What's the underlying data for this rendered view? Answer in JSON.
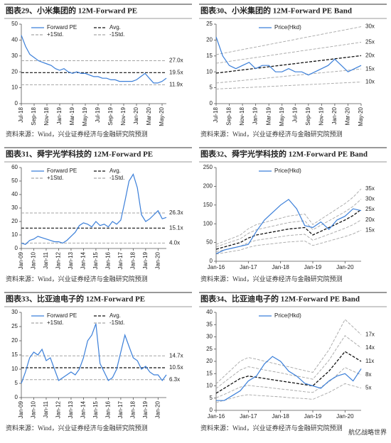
{
  "watermark": "航亿战略世界",
  "chart_data": [
    {
      "type": "line",
      "title": "图表29、小米集团的 12M-Forward PE",
      "source": "资料来源：Wind，兴业证券经济与金融研究院预测",
      "legend": "top",
      "rotate_xlabels": true,
      "categories": [
        "Jul-18",
        null,
        null,
        "Sep-18",
        null,
        null,
        "Nov-18",
        null,
        null,
        "Jan-19",
        null,
        null,
        "Mar-19",
        null,
        null,
        "May-19",
        null,
        null,
        "Jul-19",
        null,
        null,
        "Sep-19",
        null,
        null,
        "Nov-19",
        null,
        null,
        "Jan-20",
        null,
        null,
        "Mar-20",
        null,
        null,
        "May-20",
        null
      ],
      "series": [
        {
          "name": "Forward PE",
          "color": "#3b7fd9",
          "values": [
            43,
            36,
            31,
            29,
            27,
            26,
            25,
            24,
            22,
            21,
            22,
            20,
            19,
            20,
            19,
            19,
            18,
            17,
            17,
            16,
            16,
            15,
            15,
            14,
            14,
            14,
            14,
            15,
            17,
            19,
            16,
            13,
            13,
            14,
            16
          ]
        }
      ],
      "lines": [
        {
          "name": "Avg.",
          "value": 19.5,
          "label": "19.5x",
          "color": "#111111",
          "dash": "dashed"
        },
        {
          "name": "+1Std.",
          "value": 27.0,
          "label": "27.0x",
          "color": "#a6a6a6",
          "dash": "dashed"
        },
        {
          "name": "-1Std.",
          "value": 11.9,
          "label": "11.9x",
          "color": "#a6a6a6",
          "dash": "dashed"
        }
      ],
      "ylim": [
        0,
        50
      ],
      "yticks": [
        0,
        10,
        20,
        30,
        40,
        50
      ]
    },
    {
      "type": "line",
      "title": "图表30、小米集团的 12M-Forward PE Band",
      "source": "资料来源：Wind，兴业证券经济与金融研究院预测",
      "legend": "top",
      "rotate_xlabels": true,
      "categories": [
        "Jul-18",
        null,
        "Sep-18",
        null,
        "Nov-18",
        null,
        "Jan-19",
        null,
        "Mar-19",
        null,
        "May-19",
        null,
        "Jul-19",
        null,
        "Sep-19",
        null,
        "Nov-19",
        null,
        "Jan-20",
        null,
        "Mar-20",
        null,
        "May-20"
      ],
      "series": [
        {
          "name": "Price(Hkd)",
          "color": "#3b7fd9",
          "values": [
            21,
            15,
            12,
            11,
            12,
            13,
            11,
            12,
            12,
            10,
            10,
            11,
            10,
            10,
            9,
            10,
            11,
            12,
            14,
            12,
            10,
            11,
            12
          ]
        }
      ],
      "bands": [
        {
          "label": "30x",
          "color": "#a6a6a6",
          "dash": "dashed",
          "values": [
            15.4,
            15.8,
            16.2,
            16.6,
            17.0,
            17.4,
            17.8,
            18.2,
            18.6,
            19.0,
            19.4,
            19.8,
            20.2,
            20.6,
            21.0,
            21.4,
            21.8,
            22.2,
            22.6,
            23.0,
            23.4,
            23.8,
            24.2
          ]
        },
        {
          "label": "25x",
          "color": "#a6a6a6",
          "dash": "dashed",
          "values": [
            12.7,
            13.0,
            13.3,
            13.6,
            13.9,
            14.2,
            14.5,
            14.8,
            15.1,
            15.4,
            15.7,
            16.0,
            16.3,
            16.6,
            16.9,
            17.2,
            17.5,
            17.8,
            18.1,
            18.4,
            18.7,
            19.0,
            19.3
          ]
        },
        {
          "label": "20x",
          "color": "#111111",
          "dash": "dashed",
          "values": [
            9.6,
            9.85,
            10.1,
            10.35,
            10.6,
            10.85,
            11.1,
            11.35,
            11.6,
            11.85,
            12.1,
            12.35,
            12.6,
            12.85,
            13.1,
            13.35,
            13.6,
            13.85,
            14.1,
            14.35,
            14.6,
            14.85,
            15.1
          ]
        },
        {
          "label": "15x",
          "color": "#a6a6a6",
          "dash": "dashed",
          "values": [
            6.5,
            6.7,
            6.9,
            7.1,
            7.3,
            7.5,
            7.7,
            7.9,
            8.1,
            8.3,
            8.5,
            8.7,
            8.9,
            9.1,
            9.3,
            9.5,
            9.7,
            9.9,
            10.1,
            10.3,
            10.5,
            10.7,
            10.9
          ]
        },
        {
          "label": "10x",
          "color": "#a6a6a6",
          "dash": "dashed",
          "values": [
            4.6,
            4.7,
            4.8,
            4.9,
            5.0,
            5.1,
            5.2,
            5.3,
            5.4,
            5.5,
            5.6,
            5.7,
            5.8,
            5.9,
            6.0,
            6.1,
            6.2,
            6.3,
            6.4,
            6.5,
            6.6,
            6.7,
            6.8
          ]
        }
      ],
      "ylim": [
        0,
        25
      ],
      "yticks": [
        0,
        5,
        10,
        15,
        20,
        25
      ]
    },
    {
      "type": "line",
      "title": "图表31、舜宇光学科技的 12M-Forward PE",
      "source": "资料来源：Wind，兴业证券经济与金融研究院预测",
      "legend": "top",
      "rotate_xlabels": true,
      "categories": [
        "Jan-09",
        null,
        null,
        "Jan-10",
        null,
        null,
        "Jan-11",
        null,
        null,
        "Jan-12",
        null,
        null,
        "Jan-13",
        null,
        null,
        "Jan-14",
        null,
        null,
        "Jan-15",
        null,
        null,
        "Jan-16",
        null,
        null,
        "Jan-17",
        null,
        null,
        "Jan-18",
        null,
        null,
        "Jan-19",
        null,
        null,
        "Jan-20",
        null,
        null
      ],
      "series": [
        {
          "name": "Forward PE",
          "color": "#3b7fd9",
          "values": [
            4,
            3,
            6,
            7,
            9,
            8,
            7,
            6,
            5,
            5,
            4,
            6,
            9,
            12,
            17,
            19,
            18,
            16,
            20,
            17,
            18,
            16,
            20,
            18,
            21,
            35,
            50,
            55,
            45,
            25,
            20,
            22,
            25,
            28,
            22,
            23
          ]
        }
      ],
      "lines": [
        {
          "name": "Avg.",
          "value": 15.1,
          "label": "15.1x",
          "color": "#111111",
          "dash": "dashed"
        },
        {
          "name": "+1Std.",
          "value": 26.3,
          "label": "26.3x",
          "color": "#a6a6a6",
          "dash": "dashed"
        },
        {
          "name": "-1Std.",
          "value": 4.0,
          "label": "4.0x",
          "color": "#a6a6a6",
          "dash": "dashed"
        }
      ],
      "ylim": [
        0,
        60
      ],
      "yticks": [
        0,
        10,
        20,
        30,
        40,
        50,
        60
      ]
    },
    {
      "type": "line",
      "title": "图表32、舜宇光学科技的 12M-Forward PE Band",
      "source": "资料来源：Wind，兴业证券经济与金融研究院预测",
      "legend": "top",
      "rotate_xlabels": false,
      "categories": [
        "Jan-16",
        null,
        null,
        null,
        "Jan-17",
        null,
        null,
        null,
        "Jan-18",
        null,
        null,
        null,
        "Jan-19",
        null,
        null,
        null,
        "Jan-20",
        null,
        null
      ],
      "series": [
        {
          "name": "Price(Hkd)",
          "color": "#3b7fd9",
          "values": [
            20,
            30,
            35,
            40,
            45,
            80,
            110,
            130,
            150,
            165,
            140,
            95,
            90,
            105,
            85,
            110,
            120,
            140,
            135
          ]
        }
      ],
      "bands": [
        {
          "label": "35x",
          "color": "#a6a6a6",
          "dash": "dashed",
          "values": [
            44.8,
            53.2,
            61.6,
            70,
            86.8,
            98,
            103.6,
            109.2,
            114.8,
            120.4,
            123.2,
            126,
            98,
            112,
            126,
            140,
            154,
            170.8,
            193.2
          ]
        },
        {
          "label": "30x",
          "color": "#a6a6a6",
          "dash": "dashed",
          "values": [
            38.4,
            45.6,
            52.8,
            60,
            74.4,
            84,
            88.8,
            93.6,
            98.4,
            103.2,
            105.6,
            108,
            84,
            96,
            108,
            120,
            132,
            146.4,
            165.6
          ]
        },
        {
          "label": "25x",
          "color": "#111111",
          "dash": "dashed",
          "values": [
            32,
            38,
            44,
            50,
            62,
            70,
            74,
            78,
            82,
            86,
            88,
            90,
            70,
            80,
            90,
            100,
            110,
            122,
            138
          ]
        },
        {
          "label": "20x",
          "color": "#a6a6a6",
          "dash": "dashed",
          "values": [
            25.6,
            30.4,
            35.2,
            40,
            49.6,
            56,
            59.2,
            62.4,
            65.6,
            68.8,
            70.4,
            72,
            56,
            64,
            72,
            80,
            88,
            97.6,
            110.4
          ]
        },
        {
          "label": "15x",
          "color": "#a6a6a6",
          "dash": "dashed",
          "values": [
            19.2,
            22.8,
            26.4,
            30,
            37.2,
            42,
            44.4,
            46.8,
            49.2,
            51.6,
            52.8,
            54,
            42,
            48,
            54,
            60,
            66,
            73.2,
            82.8
          ]
        }
      ],
      "ylim": [
        0,
        250
      ],
      "yticks": [
        0,
        50,
        100,
        150,
        200,
        250
      ]
    },
    {
      "type": "line",
      "title": "图表33、比亚迪电子的 12M-Forward PE",
      "source": "资料来源：Wind，兴业证券经济与金融研究院预测",
      "legend": "top",
      "rotate_xlabels": true,
      "categories": [
        "Jan-09",
        null,
        null,
        "Jan-10",
        null,
        null,
        "Jan-11",
        null,
        null,
        "Jan-12",
        null,
        null,
        "Jan-13",
        null,
        null,
        "Jan-14",
        null,
        null,
        "Jan-15",
        null,
        null,
        "Jan-16",
        null,
        null,
        "Jan-17",
        null,
        null,
        "Jan-18",
        null,
        null,
        "Jan-19",
        null,
        null,
        "Jan-20",
        null,
        null
      ],
      "series": [
        {
          "name": "Forward PE",
          "color": "#3b7fd9",
          "values": [
            5,
            9,
            14,
            16,
            15,
            17,
            13,
            14,
            10,
            6,
            7,
            8,
            9,
            8,
            10,
            14,
            20,
            22,
            26,
            12,
            9,
            6,
            7,
            10,
            16,
            22,
            18,
            14,
            13,
            10,
            11,
            9,
            8,
            8,
            6,
            8
          ]
        }
      ],
      "lines": [
        {
          "name": "Avg.",
          "value": 10.5,
          "label": "10.5x",
          "color": "#111111",
          "dash": "dashed"
        },
        {
          "name": "+1Std.",
          "value": 14.7,
          "label": "14.7x",
          "color": "#a6a6a6",
          "dash": "dashed"
        },
        {
          "name": "-1Std.",
          "value": 6.3,
          "label": "6.3x",
          "color": "#a6a6a6",
          "dash": "dashed"
        }
      ],
      "ylim": [
        0,
        30
      ],
      "yticks": [
        0,
        5,
        10,
        15,
        20,
        25,
        30
      ]
    },
    {
      "type": "line",
      "title": "图表34、比亚迪电子的 12M-Forward PE Band",
      "source": "资料来源：Wind，兴业证券经济与金融研究院预测",
      "legend": "top",
      "rotate_xlabels": false,
      "categories": [
        "Jan-16",
        null,
        null,
        null,
        "Jan-17",
        null,
        null,
        null,
        "Jan-18",
        null,
        null,
        null,
        "Jan-19",
        null,
        null,
        null,
        "Jan-20",
        null,
        null
      ],
      "series": [
        {
          "name": "Price(Hkd)",
          "color": "#3b7fd9",
          "values": [
            4,
            4,
            6,
            8,
            12,
            14,
            19,
            22,
            20,
            16,
            14,
            11,
            10,
            9,
            12,
            14,
            15,
            12,
            17
          ]
        }
      ],
      "bands": [
        {
          "label": "17x",
          "color": "#a6a6a6",
          "dash": "dashed",
          "values": [
            10.8,
            13.9,
            17,
            20.1,
            21.6,
            20.9,
            20.1,
            19.3,
            18.5,
            17.8,
            17,
            16.2,
            15.5,
            20.1,
            24.7,
            30.9,
            37.1,
            34,
            30.9
          ]
        },
        {
          "label": "14x",
          "color": "#a6a6a6",
          "dash": "dashed",
          "values": [
            8.9,
            11.5,
            14,
            16.5,
            17.8,
            17.2,
            16.5,
            15.9,
            15.3,
            14.6,
            14,
            13.4,
            12.7,
            16.5,
            20.4,
            25.5,
            30.5,
            28,
            25.5
          ]
        },
        {
          "label": "11x",
          "color": "#111111",
          "dash": "dashed",
          "values": [
            7,
            9,
            11,
            13,
            14,
            13.5,
            13,
            12.5,
            12,
            11.5,
            11,
            10.5,
            10,
            13,
            16,
            20,
            24,
            22,
            20
          ]
        },
        {
          "label": "8x",
          "color": "#a6a6a6",
          "dash": "dashed",
          "values": [
            5.1,
            6.5,
            8,
            9.5,
            10.2,
            9.8,
            9.5,
            9.1,
            8.7,
            8.4,
            8,
            7.6,
            7.3,
            9.5,
            11.6,
            14.5,
            17.5,
            16,
            14.5
          ]
        },
        {
          "label": "5x",
          "color": "#a6a6a6",
          "dash": "dashed",
          "values": [
            3.2,
            4.1,
            5,
            5.9,
            6.4,
            6.1,
            5.9,
            5.7,
            5.5,
            5.2,
            5,
            4.8,
            4.5,
            5.9,
            7.3,
            9.1,
            10.9,
            10,
            9.1
          ]
        }
      ],
      "ylim": [
        0,
        40
      ],
      "yticks": [
        0,
        5,
        10,
        15,
        20,
        25,
        30,
        35,
        40
      ]
    }
  ]
}
